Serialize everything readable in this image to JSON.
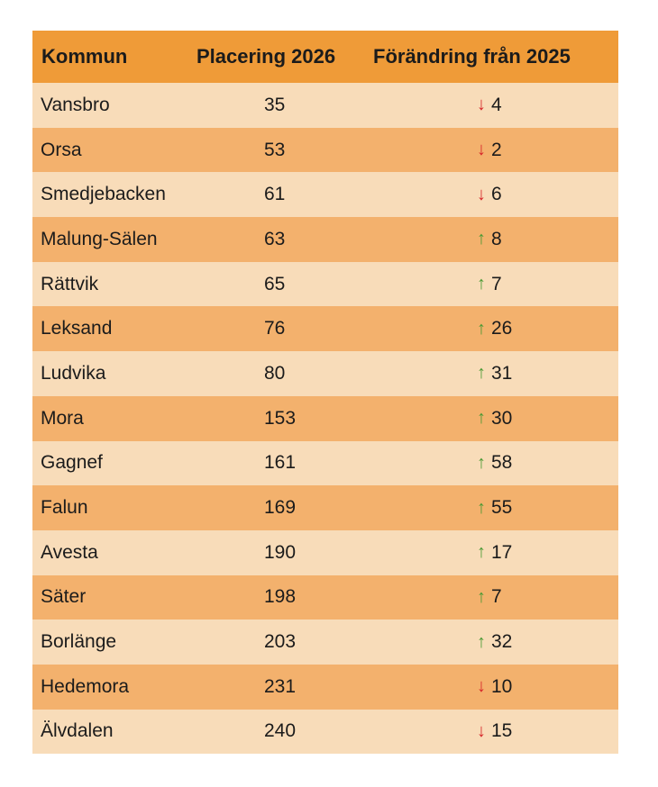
{
  "headers": {
    "kommun": "Kommun",
    "placering": "Placering 2026",
    "forandring": "Förändring från 2025"
  },
  "colors": {
    "header_bg": "#ef9b38",
    "row_light": "#f8dcb9",
    "row_dark": "#f3b16d",
    "arrow_up": "#4a9a34",
    "arrow_down": "#d6262a"
  },
  "rows": [
    {
      "kommun": "Vansbro",
      "placering": "35",
      "direction": "down",
      "arrow": "↓",
      "change": "4"
    },
    {
      "kommun": "Orsa",
      "placering": "53",
      "direction": "down",
      "arrow": "↓",
      "change": "2"
    },
    {
      "kommun": "Smedjebacken",
      "placering": "61",
      "direction": "down",
      "arrow": "↓",
      "change": "6"
    },
    {
      "kommun": "Malung-Sälen",
      "placering": "63",
      "direction": "up",
      "arrow": "↑",
      "change": "8"
    },
    {
      "kommun": "Rättvik",
      "placering": "65",
      "direction": "up",
      "arrow": "↑",
      "change": "7"
    },
    {
      "kommun": "Leksand",
      "placering": "76",
      "direction": "up",
      "arrow": "↑",
      "change": "26"
    },
    {
      "kommun": "Ludvika",
      "placering": "80",
      "direction": "up",
      "arrow": "↑",
      "change": "31"
    },
    {
      "kommun": "Mora",
      "placering": "153",
      "direction": "up",
      "arrow": "↑",
      "change": "30"
    },
    {
      "kommun": "Gagnef",
      "placering": "161",
      "direction": "up",
      "arrow": "↑",
      "change": "58"
    },
    {
      "kommun": "Falun",
      "placering": "169",
      "direction": "up",
      "arrow": "↑",
      "change": "55"
    },
    {
      "kommun": "Avesta",
      "placering": "190",
      "direction": "up",
      "arrow": "↑",
      "change": "17"
    },
    {
      "kommun": "Säter",
      "placering": "198",
      "direction": "up",
      "arrow": "↑",
      "change": "7"
    },
    {
      "kommun": "Borlänge",
      "placering": "203",
      "direction": "up",
      "arrow": "↑",
      "change": "32"
    },
    {
      "kommun": "Hedemora",
      "placering": "231",
      "direction": "down",
      "arrow": "↓",
      "change": "10"
    },
    {
      "kommun": "Älvdalen",
      "placering": "240",
      "direction": "down",
      "arrow": "↓",
      "change": "15"
    }
  ]
}
